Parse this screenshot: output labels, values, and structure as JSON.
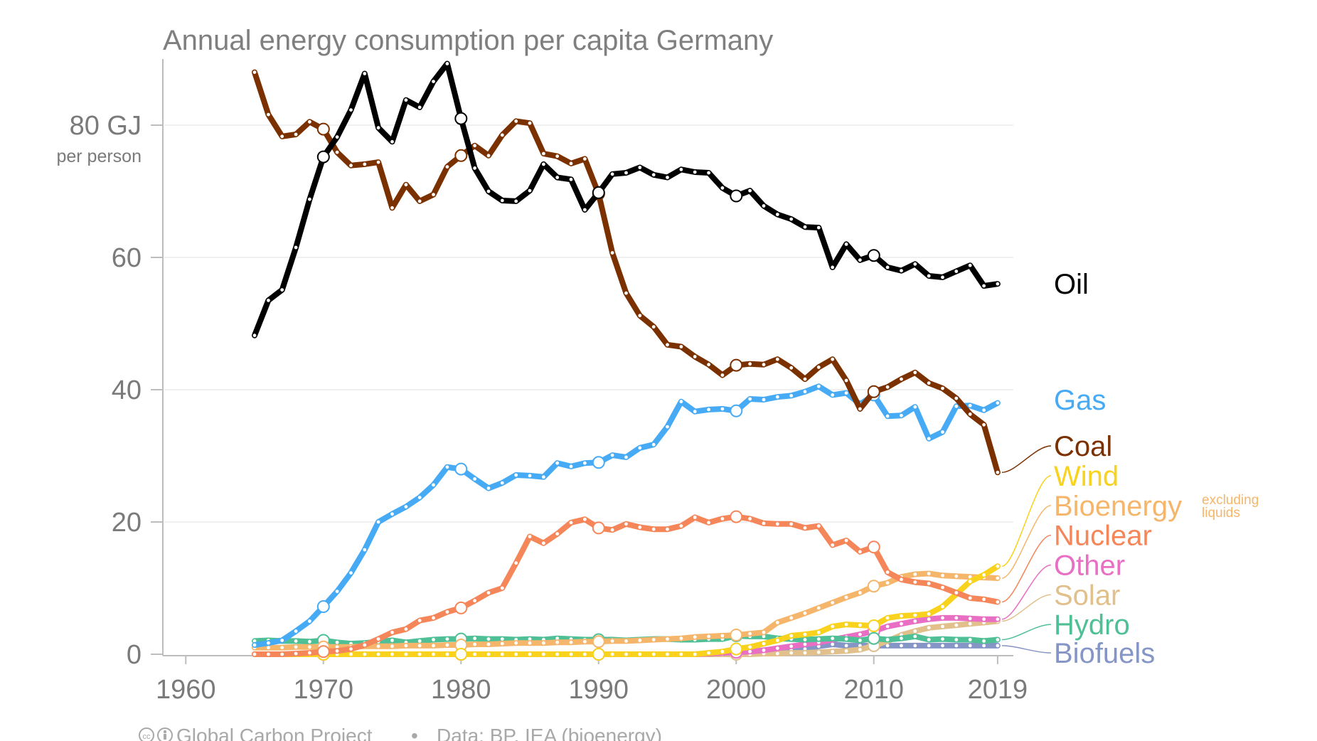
{
  "chart_data": {
    "type": "line",
    "title": "Annual energy consumption per capita Germany",
    "y_tick_unit": "GJ",
    "y_unit_note": "per person",
    "ylim": [
      0,
      90
    ],
    "xlim": [
      1957,
      2020
    ],
    "y_ticks": [
      {
        "value": 0,
        "label": "0"
      },
      {
        "value": 20,
        "label": "20"
      },
      {
        "value": 40,
        "label": "40"
      },
      {
        "value": 60,
        "label": "60"
      },
      {
        "value": 80,
        "label": "80 GJ"
      }
    ],
    "x_ticks": [
      {
        "value": 1960,
        "label": "1960"
      },
      {
        "value": 1970,
        "label": "1970"
      },
      {
        "value": 1980,
        "label": "1980"
      },
      {
        "value": 1990,
        "label": "1990"
      },
      {
        "value": 2000,
        "label": "2000"
      },
      {
        "value": 2010,
        "label": "2010"
      },
      {
        "value": 2019,
        "label": "2019"
      }
    ],
    "grid": true,
    "years_start": 1965,
    "series": [
      {
        "name": "Oil",
        "color": "#000000",
        "label_value": 56,
        "values": [
          48.2,
          53.5,
          55.1,
          61.5,
          68.8,
          75.2,
          78.2,
          82.3,
          87.8,
          79.6,
          77.5,
          83.8,
          82.7,
          86.6,
          89.3,
          81.0,
          73.5,
          70.0,
          68.6,
          68.5,
          70.1,
          74.1,
          72.1,
          71.8,
          67.2,
          69.8,
          72.6,
          72.8,
          73.6,
          72.5,
          72.1,
          73.3,
          72.9,
          72.8,
          70.5,
          69.3,
          70.1,
          67.8,
          66.5,
          65.8,
          64.6,
          64.5,
          58.5,
          62.0,
          59.6,
          60.3,
          58.5,
          58.0,
          59.0,
          57.2,
          57.0,
          57.9,
          58.8,
          55.7,
          56.0
        ]
      },
      {
        "name": "Gas",
        "color": "#46aaf4",
        "label_value": 38.5,
        "values": [
          1.4,
          1.7,
          2.1,
          3.5,
          5.0,
          7.2,
          9.5,
          12.3,
          15.8,
          20.0,
          21.2,
          22.3,
          23.7,
          25.6,
          28.3,
          28.0,
          26.5,
          25.1,
          25.9,
          27.1,
          27.0,
          26.8,
          28.9,
          28.4,
          28.9,
          29.0,
          30.1,
          29.8,
          31.2,
          31.7,
          34.4,
          38.2,
          36.7,
          37.0,
          37.1,
          36.8,
          38.6,
          38.5,
          38.9,
          39.1,
          39.7,
          40.5,
          39.2,
          39.5,
          37.8,
          39.2,
          36.0,
          36.1,
          37.4,
          32.6,
          33.6,
          37.5,
          37.6,
          36.9,
          38.0
        ]
      },
      {
        "name": "Coal",
        "color": "#7b3000",
        "label_value": 31.5,
        "values": [
          88.0,
          81.6,
          78.3,
          78.6,
          80.5,
          79.4,
          75.9,
          73.9,
          74.1,
          74.4,
          67.5,
          71.0,
          68.5,
          69.5,
          73.7,
          75.4,
          76.9,
          75.4,
          78.5,
          80.6,
          80.3,
          75.7,
          75.3,
          74.2,
          74.9,
          69.6,
          60.7,
          54.6,
          51.2,
          49.5,
          46.8,
          46.5,
          45.0,
          43.8,
          42.2,
          43.7,
          43.9,
          43.8,
          44.6,
          43.3,
          41.6,
          43.4,
          44.6,
          41.4,
          37.1,
          39.7,
          40.4,
          41.6,
          42.6,
          41.0,
          40.2,
          38.7,
          36.3,
          34.7,
          27.5
        ]
      },
      {
        "name": "Wind",
        "color": "#f8d21c",
        "label_value": 27,
        "values": [
          0,
          0,
          0,
          0,
          0,
          0,
          0,
          0,
          0,
          0,
          0,
          0,
          0,
          0,
          0,
          0,
          0,
          0,
          0,
          0,
          0,
          0,
          0,
          0,
          0,
          0,
          0,
          0,
          0,
          0,
          0,
          0,
          0,
          0.2,
          0.4,
          0.8,
          1.1,
          1.6,
          2.1,
          2.8,
          3.0,
          3.3,
          4.2,
          4.5,
          4.4,
          4.3,
          5.5,
          5.8,
          5.9,
          6.1,
          7.2,
          9.1,
          11.0,
          12.0,
          13.3
        ]
      },
      {
        "name": "Bioenergy",
        "sublabel": "excluding liquids",
        "color": "#f5b66c",
        "label_value": 22.5,
        "values": [
          1.0,
          1.0,
          1.0,
          1.1,
          1.1,
          1.1,
          1.1,
          1.1,
          1.2,
          1.2,
          1.2,
          1.3,
          1.3,
          1.3,
          1.4,
          1.4,
          1.5,
          1.5,
          1.6,
          1.7,
          1.7,
          1.7,
          1.8,
          1.8,
          1.9,
          1.9,
          2.0,
          2.0,
          2.1,
          2.2,
          2.3,
          2.4,
          2.6,
          2.7,
          2.8,
          2.9,
          3.1,
          3.3,
          4.8,
          5.5,
          6.2,
          7.0,
          7.8,
          8.6,
          9.3,
          10.3,
          10.8,
          11.7,
          12.1,
          12.2,
          11.9,
          11.8,
          11.7,
          11.6,
          11.5
        ]
      },
      {
        "name": "Nuclear",
        "color": "#f5865a",
        "label_value": 18,
        "values": [
          0,
          0,
          0,
          0.1,
          0.2,
          0.4,
          0.5,
          0.8,
          1.4,
          2.3,
          3.3,
          3.8,
          5.1,
          5.5,
          6.4,
          7.0,
          8.1,
          9.3,
          10.0,
          13.8,
          17.8,
          16.8,
          18.2,
          19.9,
          20.4,
          19.1,
          18.8,
          19.7,
          19.2,
          18.9,
          18.9,
          19.4,
          20.7,
          19.9,
          20.5,
          20.8,
          20.5,
          19.8,
          19.7,
          19.7,
          19.1,
          19.4,
          16.5,
          17.2,
          15.5,
          16.2,
          12.4,
          11.3,
          10.9,
          10.7,
          10.1,
          9.3,
          8.5,
          8.3,
          7.9
        ]
      },
      {
        "name": "Other",
        "color": "#e86fc4",
        "label_value": 13.5,
        "values": [
          0,
          0,
          0,
          0,
          0,
          0,
          0,
          0,
          0,
          0,
          0,
          0,
          0,
          0,
          0,
          0,
          0,
          0,
          0,
          0,
          0,
          0,
          0,
          0,
          0,
          0,
          0,
          0,
          0,
          0,
          0,
          0,
          0,
          0.1,
          0.2,
          0.3,
          0.4,
          0.6,
          0.9,
          1.2,
          1.5,
          1.8,
          2.2,
          2.6,
          3.0,
          3.5,
          4.2,
          4.6,
          5.0,
          5.3,
          5.5,
          5.5,
          5.4,
          5.3,
          5.3
        ]
      },
      {
        "name": "Solar",
        "color": "#e2c08c",
        "label_value": 9,
        "values": [
          0,
          0,
          0,
          0,
          0,
          0,
          0,
          0,
          0,
          0,
          0,
          0,
          0,
          0,
          0,
          0,
          0,
          0,
          0,
          0,
          0,
          0,
          0,
          0,
          0,
          0,
          0,
          0,
          0,
          0,
          0,
          0,
          0,
          0,
          0,
          0,
          0,
          0.1,
          0.1,
          0.2,
          0.2,
          0.3,
          0.4,
          0.5,
          0.7,
          1.3,
          2.0,
          2.9,
          3.5,
          4.0,
          4.2,
          4.4,
          4.6,
          4.8,
          5.0
        ]
      },
      {
        "name": "Hydro",
        "color": "#4fbf96",
        "label_value": 4.5,
        "values": [
          2.0,
          2.1,
          2.0,
          2.0,
          1.9,
          2.1,
          1.8,
          1.6,
          1.7,
          1.9,
          2.1,
          1.8,
          2.0,
          2.2,
          2.3,
          2.3,
          2.4,
          2.3,
          2.3,
          2.2,
          2.3,
          2.2,
          2.4,
          2.3,
          2.2,
          2.2,
          2.2,
          2.1,
          2.2,
          2.3,
          2.3,
          2.2,
          2.2,
          2.3,
          2.3,
          2.8,
          2.7,
          2.7,
          2.4,
          2.3,
          2.2,
          2.3,
          2.4,
          2.3,
          2.1,
          2.4,
          2.2,
          2.4,
          2.7,
          2.2,
          2.3,
          2.2,
          2.2,
          2.0,
          2.2
        ]
      },
      {
        "name": "Biofuels",
        "color": "#8595c6",
        "label_value": 0.2,
        "values": [
          0,
          0,
          0,
          0,
          0,
          0,
          0,
          0,
          0,
          0,
          0,
          0,
          0,
          0,
          0,
          0,
          0,
          0,
          0,
          0,
          0,
          0,
          0,
          0,
          0,
          0,
          0,
          0,
          0,
          0,
          0,
          0,
          0,
          0,
          0,
          0.1,
          0.2,
          0.3,
          0.4,
          0.6,
          0.8,
          1.2,
          1.5,
          1.3,
          1.3,
          1.3,
          1.3,
          1.3,
          1.3,
          1.3,
          1.3,
          1.3,
          1.3,
          1.3,
          1.3
        ]
      }
    ]
  },
  "footer": {
    "license_icons": "cc-by-icon",
    "credit": "Global Carbon Project",
    "separator": "•",
    "source": "Data: BP, IEA (bioenergy)"
  }
}
